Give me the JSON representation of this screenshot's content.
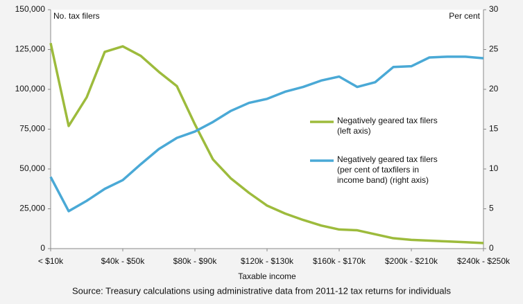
{
  "chart_data": {
    "type": "line",
    "y_label": "No. tax filers",
    "y2_label": "Per cent",
    "x_label": "Taxable income",
    "source": "Source: Treasury calculations using administrative data from 2011-12 tax returns for individuals",
    "categories": [
      "< $10k",
      null,
      null,
      null,
      "$40k - $50k",
      null,
      null,
      null,
      "$80k - $90k",
      null,
      null,
      null,
      "$120k - $130k",
      null,
      null,
      null,
      "$160k - $170k",
      null,
      null,
      null,
      "$200k - $210k",
      null,
      null,
      null,
      "$240k - $250k"
    ],
    "series": [
      {
        "name": "Negatively geared tax filers\n(left axis)",
        "color": "#9dbb3c",
        "axis": "y",
        "values": [
          129000,
          77000,
          95000,
          123500,
          127000,
          121000,
          111000,
          102000,
          78000,
          56000,
          44000,
          35000,
          27000,
          22000,
          18000,
          14500,
          12000,
          11500,
          9000,
          6500,
          5500,
          5000,
          4500,
          4000,
          3500
        ]
      },
      {
        "name": "Negatively geared tax filers\n(per cent of taxfilers in\nincome band) (right axis)",
        "color": "#4aa9d6",
        "axis": "y2",
        "values": [
          9.0,
          4.7,
          6.0,
          7.5,
          8.6,
          10.6,
          12.5,
          13.9,
          14.7,
          15.9,
          17.3,
          18.3,
          18.8,
          19.7,
          20.3,
          21.1,
          21.6,
          20.3,
          20.9,
          22.8,
          22.9,
          24.0,
          24.1,
          24.1,
          23.9
        ]
      }
    ],
    "ylim": [
      0,
      150000
    ],
    "yticks": [
      0,
      {
        "value": 25000,
        "label": "25,000"
      },
      {
        "value": 50000,
        "label": "50,000"
      },
      {
        "value": 75000,
        "label": "75,000"
      },
      {
        "value": 100000,
        "label": "100,000"
      },
      {
        "value": 125000,
        "label": "125,000"
      },
      {
        "value": 150000,
        "label": "150,000"
      }
    ],
    "y2lim": [
      0,
      30
    ],
    "y2ticks": [
      0,
      5,
      10,
      15,
      20,
      25,
      30
    ],
    "grid": false
  }
}
